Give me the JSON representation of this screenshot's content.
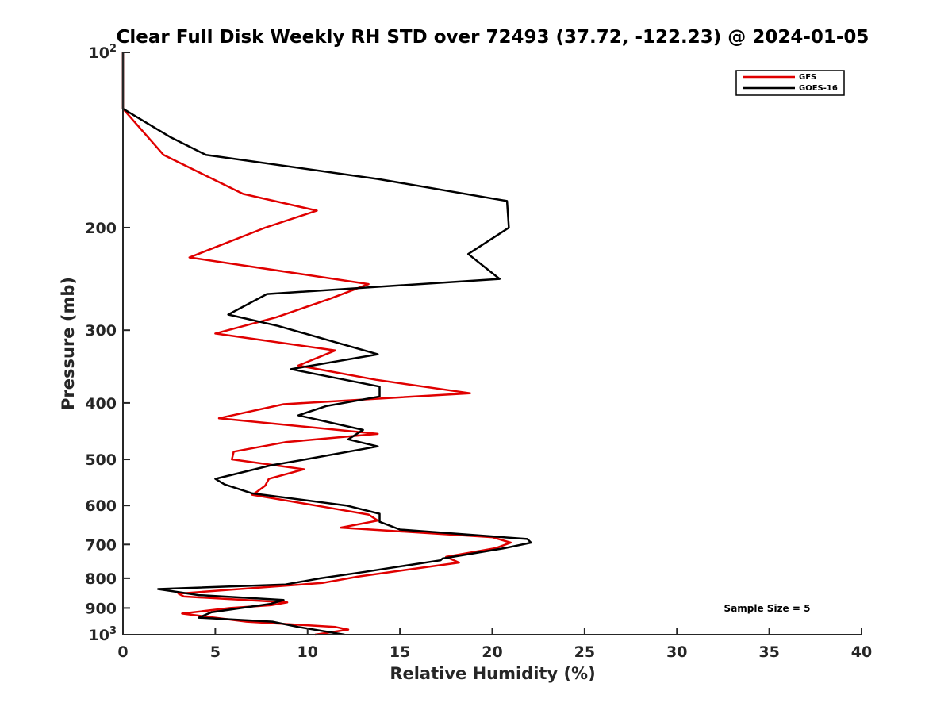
{
  "chart_data": {
    "type": "line",
    "title": "Clear Full Disk Weekly RH STD over 72493 (37.72, -122.23) @ 2024-01-05",
    "xlabel": "Relative Humidity (%)",
    "ylabel": "Pressure (mb)",
    "xlim": [
      0,
      40
    ],
    "ylim": [
      100,
      1000
    ],
    "y_scale": "log",
    "y_reversed": true,
    "grid": false,
    "legend_position": "top-right",
    "x_ticks": [
      "0",
      "5",
      "10",
      "15",
      "20",
      "25",
      "30",
      "35",
      "40"
    ],
    "y_ticks": [
      {
        "value": 100,
        "base": "10",
        "exp": "2"
      },
      {
        "value": 200,
        "label": "200"
      },
      {
        "value": 300,
        "label": "300"
      },
      {
        "value": 400,
        "label": "400"
      },
      {
        "value": 500,
        "label": "500"
      },
      {
        "value": 600,
        "label": "600"
      },
      {
        "value": 700,
        "label": "700"
      },
      {
        "value": 800,
        "label": "800"
      },
      {
        "value": 900,
        "label": "900"
      },
      {
        "value": 1000,
        "base": "10",
        "exp": "3"
      }
    ],
    "annotation": "Sample Size = 5",
    "series": [
      {
        "name": "GFS",
        "color": "#e00000",
        "points": [
          [
            0,
            100
          ],
          [
            0,
            125
          ],
          [
            2.2,
            150
          ],
          [
            6.5,
            175
          ],
          [
            10.5,
            187
          ],
          [
            7.7,
            200
          ],
          [
            3.6,
            225
          ],
          [
            13.3,
            250
          ],
          [
            11.2,
            265
          ],
          [
            8.3,
            285
          ],
          [
            5.0,
            304
          ],
          [
            11.5,
            325
          ],
          [
            9.5,
            345
          ],
          [
            13.7,
            365
          ],
          [
            18.8,
            385
          ],
          [
            8.7,
            402
          ],
          [
            5.2,
            425
          ],
          [
            13.8,
            452
          ],
          [
            8.8,
            467
          ],
          [
            6.0,
            485
          ],
          [
            5.9,
            500
          ],
          [
            9.8,
            520
          ],
          [
            7.9,
            540
          ],
          [
            7.7,
            555
          ],
          [
            7.2,
            570
          ],
          [
            7.0,
            575
          ],
          [
            11.1,
            605
          ],
          [
            13.3,
            622
          ],
          [
            13.8,
            637
          ],
          [
            11.8,
            655
          ],
          [
            20.0,
            680
          ],
          [
            21.0,
            695
          ],
          [
            20.2,
            710
          ],
          [
            17.5,
            735
          ],
          [
            18.2,
            752
          ],
          [
            15.2,
            775
          ],
          [
            12.7,
            795
          ],
          [
            10.8,
            815
          ],
          [
            3.0,
            850
          ],
          [
            3.3,
            860
          ],
          [
            8.9,
            880
          ],
          [
            8.0,
            890
          ],
          [
            5.8,
            900
          ],
          [
            3.2,
            920
          ],
          [
            6.7,
            950
          ],
          [
            11.5,
            970
          ],
          [
            12.2,
            980
          ],
          [
            10.4,
            1000
          ]
        ]
      },
      {
        "name": "GOES-16",
        "color": "#000000",
        "points": [
          [
            0,
            100
          ],
          [
            0,
            125
          ],
          [
            2.6,
            140
          ],
          [
            4.5,
            150
          ],
          [
            13.8,
            165
          ],
          [
            20.8,
            180
          ],
          [
            20.9,
            200
          ],
          [
            18.7,
            222
          ],
          [
            20.4,
            245
          ],
          [
            7.8,
            260
          ],
          [
            5.7,
            282
          ],
          [
            8.4,
            295
          ],
          [
            13.8,
            330
          ],
          [
            9.1,
            350
          ],
          [
            13.9,
            375
          ],
          [
            13.9,
            390
          ],
          [
            11.0,
            405
          ],
          [
            9.5,
            420
          ],
          [
            13.0,
            445
          ],
          [
            12.2,
            462
          ],
          [
            13.8,
            475
          ],
          [
            9.9,
            500
          ],
          [
            8.0,
            512
          ],
          [
            5.0,
            540
          ],
          [
            5.5,
            552
          ],
          [
            7.0,
            572
          ],
          [
            12.1,
            600
          ],
          [
            13.9,
            620
          ],
          [
            13.9,
            640
          ],
          [
            15.0,
            660
          ],
          [
            21.9,
            685
          ],
          [
            22.1,
            695
          ],
          [
            20.7,
            710
          ],
          [
            17.3,
            740
          ],
          [
            17.2,
            745
          ],
          [
            13.1,
            780
          ],
          [
            10.7,
            800
          ],
          [
            8.8,
            820
          ],
          [
            1.9,
            835
          ],
          [
            4.1,
            855
          ],
          [
            8.7,
            872
          ],
          [
            8.0,
            885
          ],
          [
            4.8,
            915
          ],
          [
            4.1,
            935
          ],
          [
            8.1,
            950
          ],
          [
            9.5,
            970
          ],
          [
            12.0,
            1000
          ]
        ]
      }
    ]
  }
}
